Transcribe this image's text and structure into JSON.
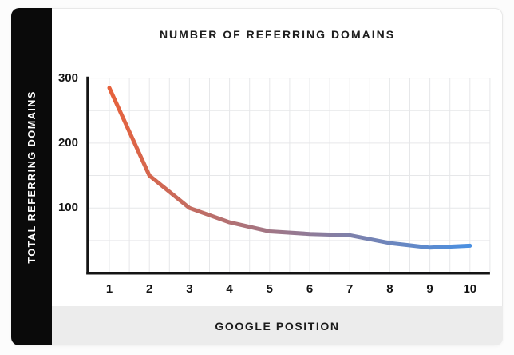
{
  "page": {
    "background": "#fcfcfc"
  },
  "card": {
    "background": "#ffffff",
    "border_color": "#e8e8e8"
  },
  "sidebar": {
    "label": "TOTAL REFERRING DOMAINS",
    "background": "#0a0a0a",
    "text_color": "#ffffff"
  },
  "footer_band": {
    "label": "GOOGLE POSITION",
    "background": "#ececec",
    "text_color": "#1b1b1b"
  },
  "chart_data": {
    "type": "line",
    "title": "NUMBER OF REFERRING DOMAINS",
    "xlabel": "GOOGLE POSITION",
    "ylabel": "TOTAL REFERRING DOMAINS",
    "x": [
      1,
      2,
      3,
      4,
      5,
      6,
      7,
      8,
      9,
      10
    ],
    "x_tick_labels": [
      "1",
      "2",
      "3",
      "4",
      "5",
      "6",
      "7",
      "8",
      "9",
      "10"
    ],
    "series": [
      {
        "name": "Total referring domains",
        "values": [
          285,
          150,
          100,
          78,
          64,
          60,
          58,
          46,
          39,
          42
        ]
      }
    ],
    "ylim": [
      0,
      300
    ],
    "y_ticks": [
      100,
      200,
      300
    ],
    "y_tick_labels": [
      "100",
      "200",
      "300"
    ],
    "y_gridline_step": 50,
    "x_gridline_step": 0.5,
    "grid": true,
    "legend": "none",
    "line_width": 5,
    "line_gradient": {
      "start": "#E7613B",
      "end": "#4A90E2"
    },
    "grid_color": "#e6e7e9",
    "axis_color": "#141414",
    "title_color": "#1d1d1d",
    "tick_color": "#141414"
  }
}
